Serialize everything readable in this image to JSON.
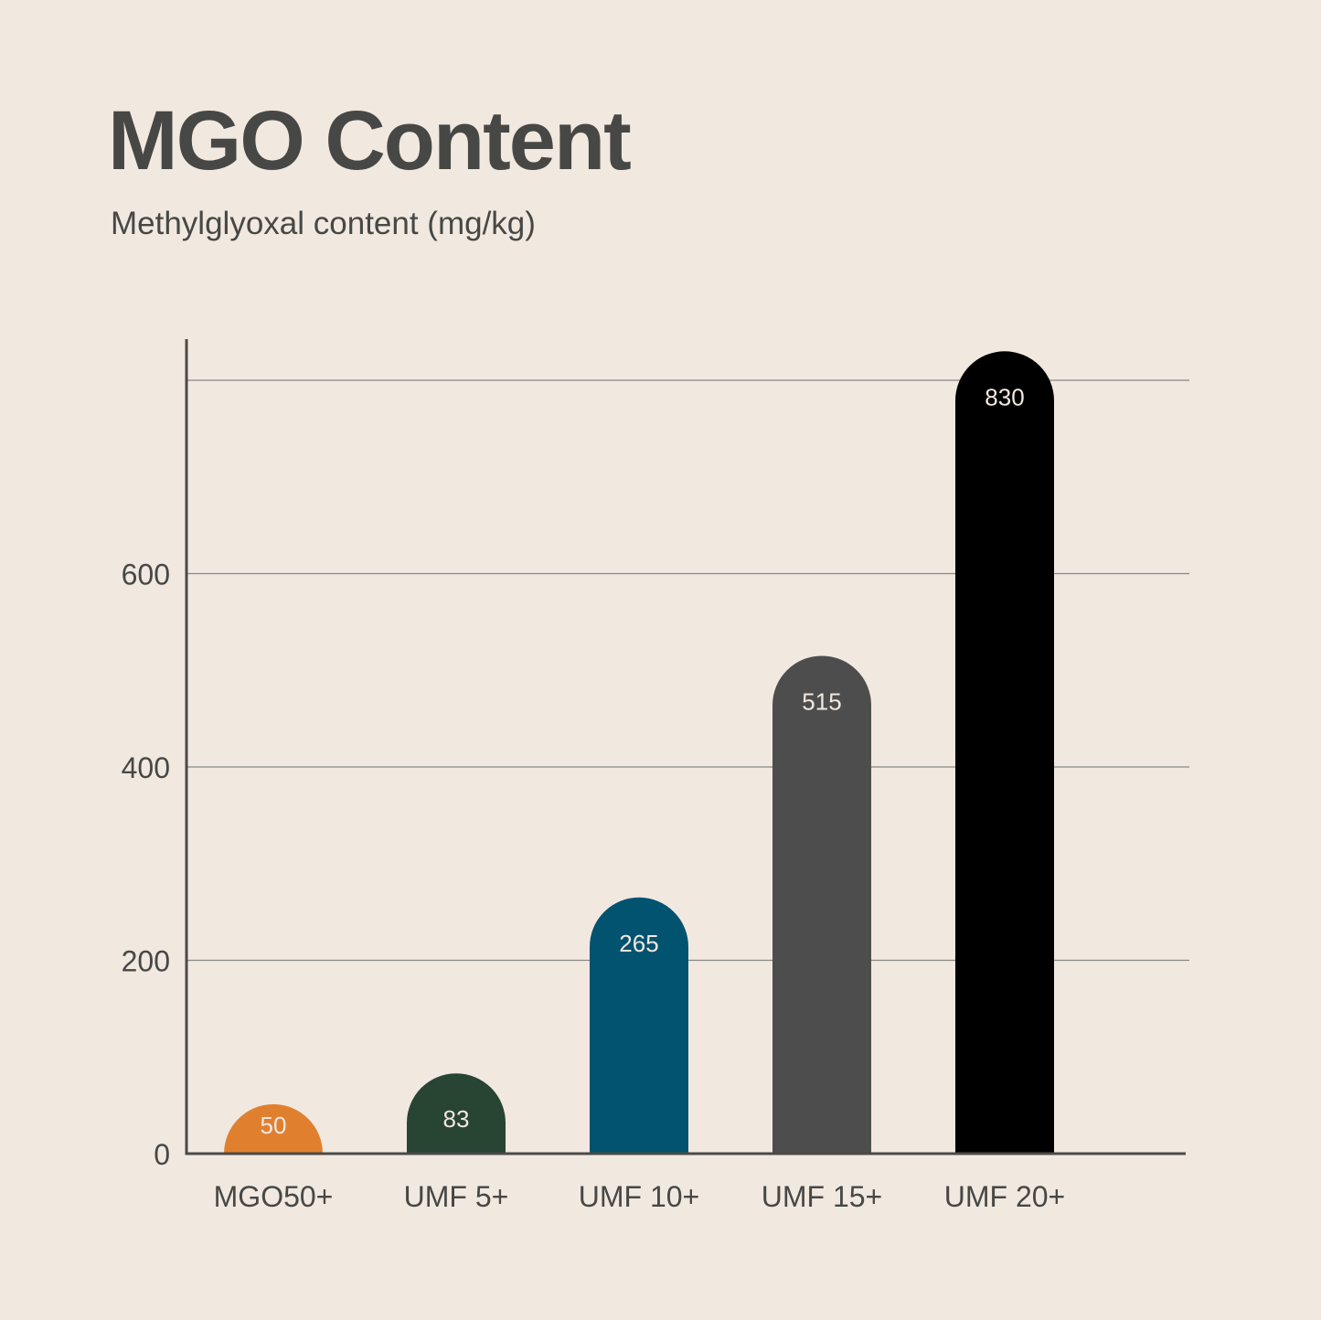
{
  "chart_data": {
    "type": "bar",
    "title": "MGO Content",
    "subtitle": "Methylglyoxal content (mg/kg)",
    "categories": [
      "MGO50+",
      "UMF 5+",
      "UMF 10+",
      "UMF 15+",
      "UMF 20+"
    ],
    "values": [
      50,
      83,
      265,
      515,
      830
    ],
    "value_labels": [
      "50",
      "83",
      "265",
      "515",
      "830"
    ],
    "bar_colors": [
      "#e0802f",
      "#284432",
      "#02536f",
      "#4d4d4d",
      "#000000"
    ],
    "y_ticks": [
      0,
      200,
      400,
      600,
      800
    ],
    "y_tick_labels": [
      "0",
      "200",
      "400",
      "600",
      ""
    ],
    "ylim": [
      0,
      800
    ],
    "xlabel": "",
    "ylabel": "",
    "grid": true,
    "legend": "none",
    "colors": {
      "background": "#f1e8e0",
      "text": "#474845",
      "axis": "#4a4a47",
      "grid": "#8a8784",
      "bar_label": "#f1e8e0"
    }
  }
}
